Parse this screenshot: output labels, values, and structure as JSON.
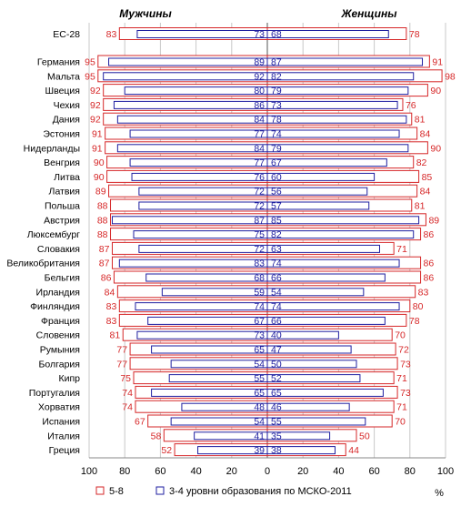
{
  "chart_data": {
    "type": "bar",
    "layout": "butterfly",
    "panels": [
      {
        "title": "Мужчины",
        "side": "left"
      },
      {
        "title": "Женщины",
        "side": "right"
      }
    ],
    "categories": [
      "ЕС-28",
      "Германия",
      "Мальта",
      "Швеция",
      "Чехия",
      "Дания",
      "Эстония",
      "Нидерланды",
      "Венгрия",
      "Литва",
      "Латвия",
      "Польша",
      "Австрия",
      "Люксембург",
      "Словакия",
      "Великобритания",
      "Бельгия",
      "Ирландия",
      "Финляндия",
      "Франция",
      "Словения",
      "Румыния",
      "Болгария",
      "Кипр",
      "Португалия",
      "Хорватия",
      "Испания",
      "Италия",
      "Греция"
    ],
    "series": [
      {
        "name": "5-8",
        "color": "#d62728",
        "men": [
          83,
          95,
          95,
          92,
          92,
          92,
          91,
          91,
          90,
          90,
          89,
          88,
          88,
          88,
          87,
          87,
          86,
          84,
          83,
          83,
          81,
          77,
          77,
          75,
          74,
          74,
          67,
          58,
          52
        ],
        "women": [
          78,
          91,
          98,
          90,
          76,
          81,
          84,
          90,
          82,
          85,
          84,
          81,
          89,
          86,
          71,
          86,
          86,
          83,
          80,
          78,
          70,
          72,
          73,
          71,
          73,
          71,
          70,
          50,
          44
        ]
      },
      {
        "name": "3-4 уровни образования по МСКО-2011",
        "color": "#1f1fa0",
        "men": [
          73,
          89,
          92,
          80,
          86,
          84,
          77,
          84,
          77,
          76,
          72,
          72,
          87,
          75,
          72,
          83,
          68,
          59,
          74,
          67,
          73,
          65,
          54,
          55,
          65,
          48,
          54,
          41,
          39
        ],
        "women": [
          68,
          87,
          82,
          79,
          73,
          78,
          74,
          79,
          67,
          60,
          56,
          57,
          85,
          82,
          63,
          74,
          66,
          54,
          74,
          66,
          40,
          47,
          50,
          52,
          65,
          46,
          55,
          35,
          38
        ]
      }
    ],
    "x_ticks": [
      "100",
      "80",
      "60",
      "40",
      "20",
      "0",
      "20",
      "40",
      "60",
      "80",
      "100"
    ],
    "xlim": [
      0,
      100
    ],
    "unit": "%",
    "grid": true
  }
}
